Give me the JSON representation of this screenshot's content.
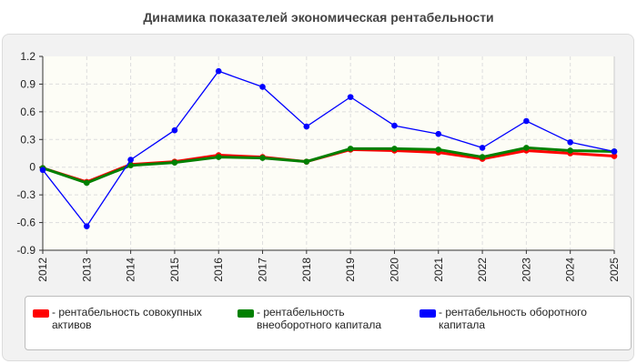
{
  "chart_data": {
    "type": "line",
    "title": "Динамика показателей экономическая рентабельности",
    "x": [
      "2012",
      "2013",
      "2014",
      "2015",
      "2016",
      "2017",
      "2018",
      "2019",
      "2020",
      "2021",
      "2022",
      "2023",
      "2024",
      "2025"
    ],
    "ylim": [
      -0.9,
      1.2
    ],
    "yticks": [
      "1.2",
      "0.9",
      "0.6",
      "0.3",
      "0",
      "-0.3",
      "-0.6",
      "-0.9"
    ],
    "grid": true,
    "legend_position": "bottom",
    "series": [
      {
        "name": "- рентабельность совокупных активов",
        "color": "#ff0000",
        "values": [
          -0.01,
          -0.16,
          0.03,
          0.06,
          0.13,
          0.11,
          0.06,
          0.19,
          0.18,
          0.16,
          0.09,
          0.18,
          0.15,
          0.12
        ]
      },
      {
        "name": "- рентабельность внеоборотного капитала",
        "color": "#008000",
        "values": [
          -0.01,
          -0.17,
          0.02,
          0.05,
          0.11,
          0.1,
          0.06,
          0.2,
          0.2,
          0.19,
          0.11,
          0.21,
          0.18,
          0.17
        ]
      },
      {
        "name": "- рентабельность оборотного капитала",
        "color": "#0000ff",
        "values": [
          -0.03,
          -0.64,
          0.08,
          0.4,
          1.04,
          0.87,
          0.44,
          0.76,
          0.45,
          0.36,
          0.21,
          0.5,
          0.27,
          0.17
        ]
      }
    ]
  }
}
